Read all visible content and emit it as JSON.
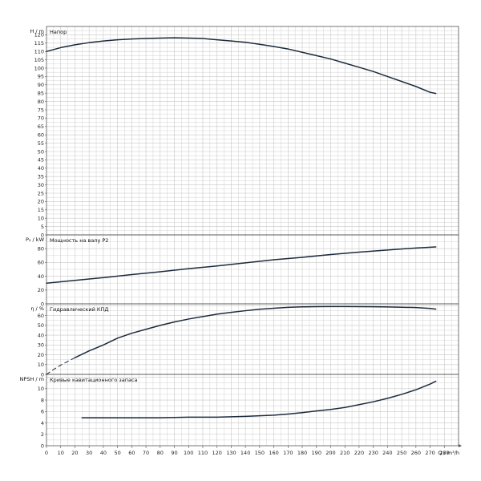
{
  "chart_data": [
    {
      "type": "line",
      "ylabel": "H / m",
      "title": "Напор",
      "ylim": [
        0,
        125
      ],
      "ytick_step": 5,
      "ytick_max": 120,
      "curves": [
        {
          "points": [
            [
              0,
              110
            ],
            [
              10,
              112.3
            ],
            [
              20,
              114
            ],
            [
              30,
              115.3
            ],
            [
              40,
              116.3
            ],
            [
              50,
              117
            ],
            [
              60,
              117.5
            ],
            [
              70,
              117.8
            ],
            [
              80,
              118
            ],
            [
              90,
              118.2
            ],
            [
              100,
              118
            ],
            [
              110,
              117.8
            ],
            [
              120,
              117
            ],
            [
              130,
              116.3
            ],
            [
              140,
              115.5
            ],
            [
              150,
              114.3
            ],
            [
              160,
              113
            ],
            [
              170,
              111.5
            ],
            [
              180,
              109.5
            ],
            [
              190,
              107.5
            ],
            [
              200,
              105.5
            ],
            [
              210,
              103
            ],
            [
              220,
              100.5
            ],
            [
              230,
              98
            ],
            [
              240,
              95
            ],
            [
              250,
              92
            ],
            [
              260,
              89
            ],
            [
              270,
              85.5
            ],
            [
              274,
              84.8
            ]
          ]
        }
      ]
    },
    {
      "type": "line",
      "ylabel": "P₂ / kW",
      "title": "Мощность на валу P2",
      "ylim": [
        0,
        100
      ],
      "ytick_step": 20,
      "ytick_max": 80,
      "curves": [
        {
          "points": [
            [
              0,
              30
            ],
            [
              20,
              34
            ],
            [
              40,
              38
            ],
            [
              60,
              42.5
            ],
            [
              80,
              46.5
            ],
            [
              100,
              51
            ],
            [
              120,
              55
            ],
            [
              140,
              59.5
            ],
            [
              160,
              64
            ],
            [
              180,
              67.5
            ],
            [
              200,
              71.5
            ],
            [
              220,
              75
            ],
            [
              240,
              78
            ],
            [
              260,
              81
            ],
            [
              274,
              82.5
            ]
          ]
        }
      ]
    },
    {
      "type": "line",
      "ylabel": "η / %",
      "title": "Гидравлический КПД",
      "ylim": [
        0,
        72
      ],
      "ytick_step": 10,
      "ytick_max": 60,
      "curves": [
        {
          "dashed": true,
          "points": [
            [
              0,
              0
            ],
            [
              5,
              5
            ],
            [
              10,
              9.5
            ],
            [
              20,
              17
            ]
          ]
        },
        {
          "points": [
            [
              20,
              17
            ],
            [
              30,
              24
            ],
            [
              40,
              30
            ],
            [
              50,
              37
            ],
            [
              60,
              42
            ],
            [
              70,
              46
            ],
            [
              80,
              50
            ],
            [
              90,
              53.5
            ],
            [
              100,
              56.5
            ],
            [
              110,
              59
            ],
            [
              120,
              61.5
            ],
            [
              130,
              63.3
            ],
            [
              140,
              65
            ],
            [
              150,
              66.5
            ],
            [
              160,
              67.5
            ],
            [
              170,
              68.4
            ],
            [
              180,
              68.9
            ],
            [
              190,
              69.1
            ],
            [
              200,
              69.2
            ],
            [
              210,
              69.2
            ],
            [
              220,
              69.1
            ],
            [
              230,
              69
            ],
            [
              240,
              68.8
            ],
            [
              250,
              68.5
            ],
            [
              260,
              68.2
            ],
            [
              270,
              67.3
            ],
            [
              274,
              66.6
            ]
          ]
        }
      ]
    },
    {
      "type": "line",
      "ylabel": "NPSH / m",
      "title": "Кривые кавитационного запаса",
      "ylim": [
        0,
        12.5
      ],
      "ytick_step": 2,
      "ytick_max": 10,
      "curves": [
        {
          "points": [
            [
              25,
              4.9
            ],
            [
              40,
              4.9
            ],
            [
              60,
              4.9
            ],
            [
              80,
              4.9
            ],
            [
              100,
              5
            ],
            [
              120,
              5
            ],
            [
              140,
              5.15
            ],
            [
              160,
              5.35
            ],
            [
              170,
              5.55
            ],
            [
              180,
              5.8
            ],
            [
              190,
              6.1
            ],
            [
              200,
              6.35
            ],
            [
              210,
              6.7
            ],
            [
              220,
              7.2
            ],
            [
              230,
              7.7
            ],
            [
              240,
              8.3
            ],
            [
              250,
              9
            ],
            [
              260,
              9.8
            ],
            [
              270,
              10.8
            ],
            [
              274,
              11.3
            ]
          ]
        }
      ]
    }
  ],
  "xaxis": {
    "label": "Q / m³/h",
    "xlim": [
      0,
      290
    ],
    "ticks": [
      0,
      10,
      20,
      30,
      40,
      50,
      60,
      70,
      80,
      90,
      100,
      110,
      120,
      130,
      140,
      150,
      160,
      170,
      180,
      190,
      200,
      210,
      220,
      230,
      240,
      250,
      260,
      270,
      280
    ]
  },
  "colors": {
    "grid": "#c8c8c8",
    "frame": "#555555",
    "curve": "#1c2b3c"
  }
}
